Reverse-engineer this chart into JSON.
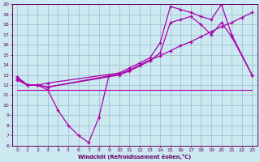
{
  "xlabel": "Windchill (Refroidissement éolien,°C)",
  "bg_color": "#cce8f0",
  "grid_color": "#99bbcc",
  "line_color": "#aa00aa",
  "spine_color": "#660066",
  "xlim": [
    -0.5,
    23.5
  ],
  "ylim": [
    6,
    20
  ],
  "yticks": [
    6,
    7,
    8,
    9,
    10,
    11,
    12,
    13,
    14,
    15,
    16,
    17,
    18,
    19,
    20
  ],
  "xticks": [
    0,
    1,
    2,
    3,
    4,
    5,
    6,
    7,
    8,
    9,
    10,
    11,
    12,
    13,
    14,
    15,
    16,
    17,
    18,
    19,
    20,
    21,
    22,
    23
  ],
  "s1x": [
    0,
    1,
    2,
    3,
    4,
    5,
    6,
    7,
    8,
    9
  ],
  "s1y": [
    12.8,
    12.0,
    12.0,
    11.5,
    9.5,
    8.0,
    7.0,
    6.3,
    8.8,
    13.0
  ],
  "s2x": [
    0,
    1,
    2,
    3,
    10,
    11,
    12,
    13,
    14,
    15,
    16,
    17,
    18,
    19,
    20,
    21,
    23
  ],
  "s2y": [
    12.8,
    12.0,
    12.0,
    12.2,
    13.2,
    13.7,
    14.2,
    14.7,
    16.2,
    19.8,
    19.5,
    19.2,
    18.8,
    18.5,
    20.0,
    17.0,
    13.0
  ],
  "s3x": [
    0,
    1,
    2,
    3,
    10,
    11,
    12,
    13,
    14,
    15,
    16,
    17,
    18,
    19,
    20,
    21,
    23
  ],
  "s3y": [
    12.5,
    12.0,
    12.0,
    11.8,
    13.0,
    13.4,
    13.9,
    14.4,
    15.2,
    18.2,
    18.5,
    18.8,
    18.0,
    17.0,
    18.2,
    16.8,
    13.0
  ],
  "s4x": [
    0,
    1,
    2,
    3,
    10,
    11,
    12,
    13,
    14,
    15,
    16,
    17,
    18,
    19,
    20,
    21,
    22,
    23
  ],
  "s4y": [
    12.6,
    12.0,
    12.0,
    11.8,
    13.1,
    13.5,
    14.0,
    14.5,
    14.9,
    15.4,
    15.9,
    16.3,
    16.8,
    17.3,
    17.8,
    18.2,
    18.7,
    19.2
  ],
  "s5x": [
    0,
    10,
    23
  ],
  "s5y": [
    11.5,
    11.5,
    11.5
  ]
}
